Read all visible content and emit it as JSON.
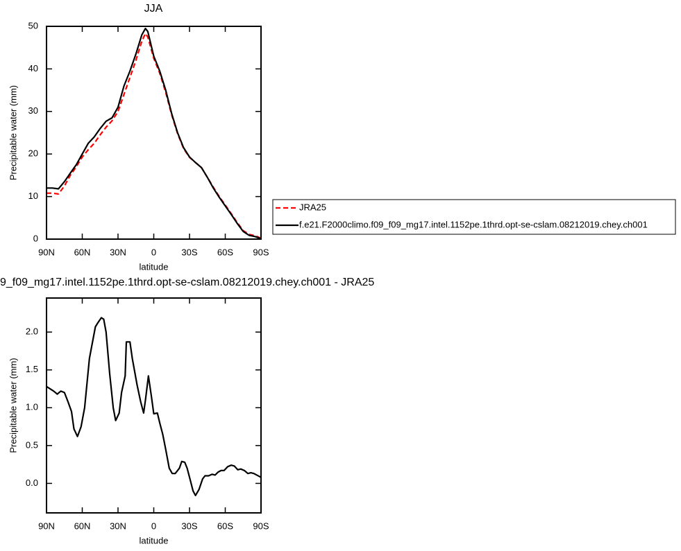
{
  "chart_data": [
    {
      "type": "line",
      "title": "JJA",
      "xlabel": "latitude",
      "ylabel": "Precipitable water (mm)",
      "x": [
        90,
        85,
        80,
        75,
        70,
        65,
        60,
        55,
        50,
        45,
        40,
        35,
        30,
        25,
        20,
        15,
        10,
        7,
        5,
        0,
        -5,
        -10,
        -15,
        -20,
        -25,
        -30,
        -35,
        -40,
        -45,
        -50,
        -55,
        -60,
        -65,
        -70,
        -75,
        -80,
        -85,
        -90
      ],
      "xlim": [
        90,
        -90
      ],
      "xticks": [
        {
          "value": 90,
          "label": "90N"
        },
        {
          "value": 60,
          "label": "60N"
        },
        {
          "value": 30,
          "label": "30N"
        },
        0,
        {
          "value": -30,
          "label": "30S"
        },
        {
          "value": -60,
          "label": "60S"
        },
        {
          "value": -90,
          "label": "90S"
        }
      ],
      "ylim": [
        0,
        50
      ],
      "yticks": [
        0,
        10,
        20,
        30,
        40,
        50
      ],
      "legend": "right",
      "series": [
        {
          "name": "JRA25",
          "color": "#ff0000",
          "dashed": true,
          "values": [
            10.8,
            10.8,
            10.6,
            12.5,
            15,
            17,
            19.3,
            21,
            22.5,
            24.5,
            26.3,
            27.8,
            30,
            34,
            38,
            42,
            46.5,
            48.3,
            47.5,
            42.5,
            39,
            34.5,
            29.2,
            24.8,
            21.3,
            19.2,
            18,
            16.8,
            14.5,
            12.2,
            10,
            8,
            6,
            3.9,
            2,
            1.1,
            0.8,
            0.2
          ]
        },
        {
          "name": "f.e21.F2000climo.f09_f09_mg17.intel.1152pe.1thrd.opt-se-cslam.08212019.chey.ch001",
          "color": "#000000",
          "dashed": false,
          "values": [
            12,
            12,
            11.8,
            13.5,
            15.5,
            17.5,
            20,
            22.5,
            24,
            26,
            27.7,
            28.5,
            31,
            36,
            39.5,
            43.5,
            48,
            49.5,
            48.8,
            43,
            39.5,
            35,
            29.5,
            25,
            21.5,
            19.3,
            18,
            16.8,
            14.5,
            12,
            9.8,
            7.8,
            5.8,
            3.7,
            1.8,
            0.9,
            0.6,
            0.1
          ]
        }
      ]
    },
    {
      "type": "line",
      "title": "9_f09_mg17.intel.1152pe.1thrd.opt-se-cslam.08212019.chey.ch001 - JRA25",
      "xlabel": "latitude",
      "ylabel": "Precipitable water (mm)",
      "x": [
        90,
        84,
        81,
        78,
        75,
        72,
        69,
        67,
        64,
        61,
        58,
        54,
        49,
        47,
        44,
        42,
        40,
        37,
        34,
        32,
        29,
        27,
        24,
        23,
        20,
        18,
        14,
        11,
        8.5,
        7,
        4.5,
        2,
        0,
        -3,
        -5,
        -7.5,
        -10,
        -13,
        -15.5,
        -18,
        -21.5,
        -23.5,
        -26,
        -28,
        -30.5,
        -33,
        -35,
        -38,
        -41,
        -43,
        -46,
        -49,
        -51.5,
        -54,
        -56.5,
        -59,
        -62,
        -65,
        -67.5,
        -70.5,
        -73,
        -76,
        -79,
        -81.5,
        -84,
        -90
      ],
      "xlim": [
        90,
        -90
      ],
      "xticks": [
        {
          "value": 90,
          "label": "90N"
        },
        {
          "value": 60,
          "label": "60N"
        },
        {
          "value": 30,
          "label": "30N"
        },
        0,
        {
          "value": -30,
          "label": "30S"
        },
        {
          "value": -60,
          "label": "60S"
        },
        {
          "value": -90,
          "label": "90S"
        }
      ],
      "ylim": [
        -0.39,
        2.45
      ],
      "yticks": [
        {
          "value": 0,
          "label": "0.0"
        },
        0.5,
        {
          "value": 1,
          "label": "1.0"
        },
        1.5,
        {
          "value": 2,
          "label": "2.0"
        }
      ],
      "series": [
        {
          "color": "#000000",
          "dashed": false,
          "values": [
            1.28,
            1.22,
            1.18,
            1.22,
            1.2,
            1.08,
            0.95,
            0.72,
            0.62,
            0.75,
            1.0,
            1.65,
            2.07,
            2.12,
            2.19,
            2.17,
            2.0,
            1.45,
            1.0,
            0.83,
            0.93,
            1.2,
            1.42,
            1.87,
            1.87,
            1.65,
            1.3,
            1.08,
            0.93,
            1.1,
            1.42,
            1.15,
            0.92,
            0.93,
            0.8,
            0.65,
            0.45,
            0.2,
            0.13,
            0.13,
            0.2,
            0.29,
            0.28,
            0.2,
            0.05,
            -0.1,
            -0.16,
            -0.08,
            0.06,
            0.1,
            0.1,
            0.12,
            0.11,
            0.15,
            0.17,
            0.17,
            0.22,
            0.24,
            0.23,
            0.18,
            0.19,
            0.17,
            0.13,
            0.14,
            0.13,
            0.08
          ]
        }
      ]
    }
  ]
}
